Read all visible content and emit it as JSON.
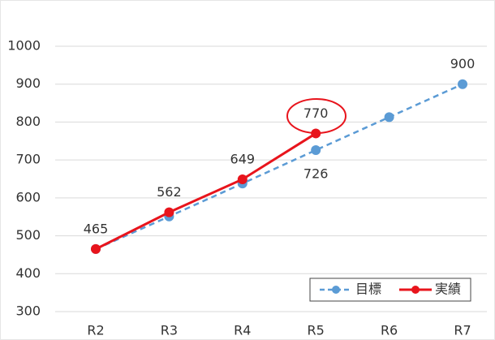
{
  "chart_data": {
    "type": "line",
    "categories": [
      "R2",
      "R3",
      "R4",
      "R5",
      "R6",
      "R7"
    ],
    "series": [
      {
        "name": "目標",
        "color": "#5b9bd5",
        "dashed": true,
        "values": [
          465,
          551,
          638,
          726,
          813,
          900
        ],
        "value_labels": [
          null,
          null,
          null,
          "726",
          null,
          "900"
        ]
      },
      {
        "name": "実績",
        "color": "#e8141c",
        "dashed": false,
        "values": [
          465,
          562,
          649,
          770,
          null,
          null
        ],
        "value_labels": [
          "465",
          "562",
          "649",
          "770",
          null,
          null
        ]
      }
    ],
    "ylim": [
      300,
      1000
    ],
    "yticks": [
      300,
      400,
      500,
      600,
      700,
      800,
      900,
      1000
    ],
    "grid": true,
    "legend": "bottom-right"
  }
}
